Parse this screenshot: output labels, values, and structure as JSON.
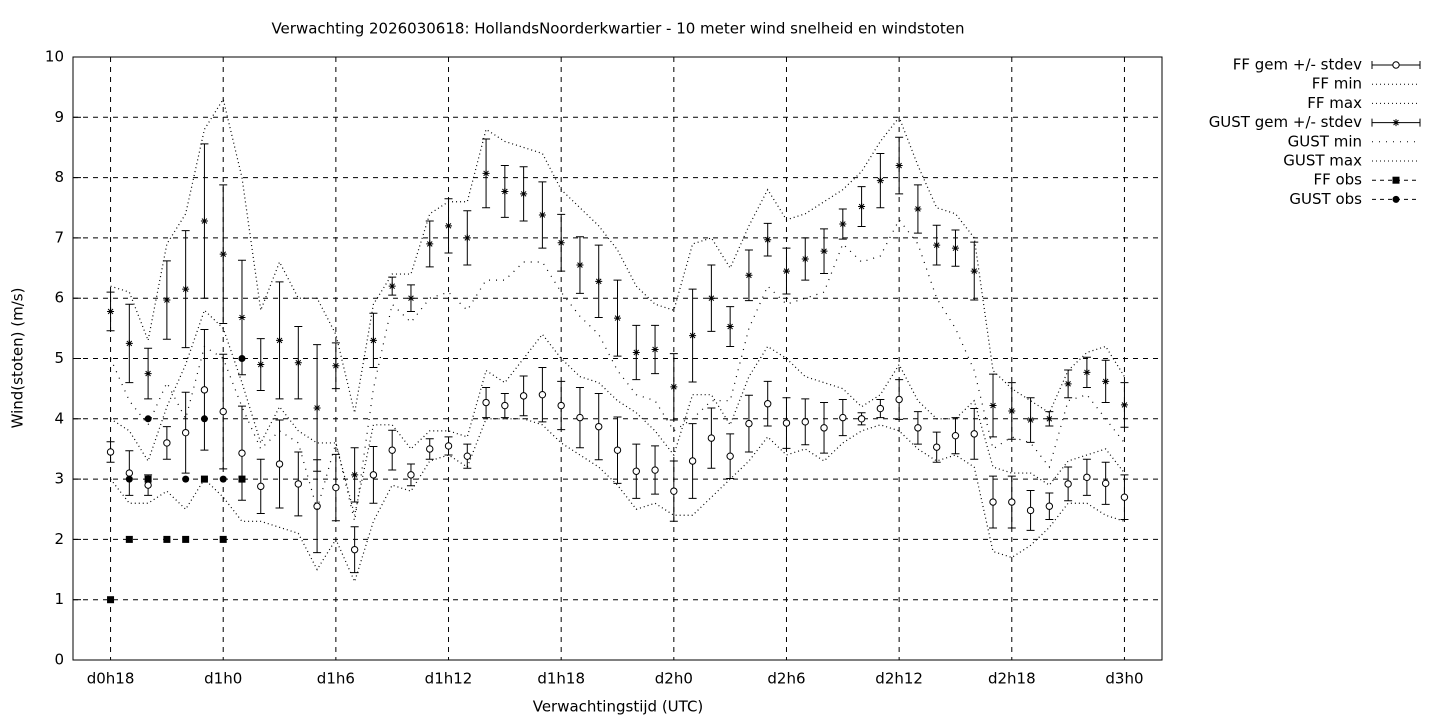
{
  "chart_data": {
    "type": "errorbar",
    "title": "Verwachting 2026030618: HollandsNoorderkwartier - 10 meter wind snelheid en windstoten",
    "x_label": "Verwachtingstijd (UTC)",
    "y_label": "Wind(stoten) (m/s)",
    "xlim": [
      16,
      74
    ],
    "xticks": [
      {
        "value": 18,
        "label": "d0h18"
      },
      {
        "value": 24,
        "label": "d1h0"
      },
      {
        "value": 30,
        "label": "d1h6"
      },
      {
        "value": 36,
        "label": "d1h12"
      },
      {
        "value": 42,
        "label": "d1h18"
      },
      {
        "value": 48,
        "label": "d2h0"
      },
      {
        "value": 54,
        "label": "d2h6"
      },
      {
        "value": 60,
        "label": "d2h12"
      },
      {
        "value": 66,
        "label": "d2h18"
      },
      {
        "value": 72,
        "label": "d3h0"
      }
    ],
    "ylim": [
      0,
      10
    ],
    "yticks": [
      0,
      1,
      2,
      3,
      4,
      5,
      6,
      7,
      8,
      9,
      10
    ],
    "grid": true,
    "legend": "outside-top-right",
    "x": [
      18,
      19,
      20,
      21,
      22,
      23,
      24,
      25,
      26,
      27,
      28,
      29,
      30,
      31,
      32,
      33,
      34,
      35,
      36,
      37,
      38,
      39,
      40,
      41,
      42,
      43,
      44,
      45,
      46,
      47,
      48,
      49,
      50,
      51,
      52,
      53,
      54,
      55,
      56,
      57,
      58,
      59,
      60,
      61,
      62,
      63,
      64,
      65,
      66,
      67,
      68,
      69,
      70,
      71,
      72
    ],
    "series": [
      {
        "name": "FF gem +/- stdev",
        "color": "#000000",
        "style": "errorbar",
        "marker": "open-circle",
        "values": [
          3.45,
          3.1,
          2.9,
          3.6,
          3.77,
          4.48,
          4.12,
          3.43,
          2.88,
          3.25,
          2.92,
          2.55,
          2.86,
          1.83,
          3.07,
          3.48,
          3.07,
          3.5,
          3.55,
          3.38,
          4.27,
          4.22,
          4.38,
          4.4,
          4.22,
          4.02,
          3.87,
          3.48,
          3.13,
          3.15,
          2.8,
          3.3,
          3.68,
          3.38,
          3.92,
          4.25,
          3.93,
          3.95,
          3.85,
          4.02,
          4.0,
          4.17,
          4.32,
          3.85,
          3.53,
          3.72,
          3.75,
          2.62,
          2.62,
          2.48,
          2.55,
          2.92,
          3.03,
          2.93,
          2.7
        ],
        "errors": [
          0.17,
          0.37,
          0.17,
          0.27,
          0.67,
          1.0,
          0.95,
          0.78,
          0.45,
          0.73,
          0.53,
          0.77,
          0.55,
          0.38,
          0.47,
          0.33,
          0.18,
          0.17,
          0.15,
          0.2,
          0.25,
          0.2,
          0.33,
          0.45,
          0.4,
          0.5,
          0.55,
          0.55,
          0.45,
          0.4,
          0.5,
          0.62,
          0.5,
          0.37,
          0.47,
          0.37,
          0.42,
          0.38,
          0.42,
          0.3,
          0.1,
          0.15,
          0.33,
          0.27,
          0.25,
          0.3,
          0.42,
          0.43,
          0.43,
          0.33,
          0.22,
          0.28,
          0.3,
          0.35,
          0.37
        ]
      },
      {
        "name": "FF min",
        "color": "#000000",
        "style": "dotted",
        "values": [
          3.0,
          2.6,
          2.6,
          2.8,
          2.5,
          3.0,
          2.7,
          2.3,
          2.3,
          2.2,
          2.1,
          1.5,
          2.0,
          1.3,
          2.3,
          2.9,
          2.8,
          3.3,
          3.4,
          3.2,
          4.0,
          4.0,
          4.0,
          3.9,
          3.6,
          3.4,
          3.2,
          2.9,
          2.5,
          2.6,
          2.4,
          2.4,
          2.7,
          3.0,
          3.3,
          3.7,
          3.4,
          3.5,
          3.3,
          3.6,
          3.8,
          3.9,
          3.8,
          3.5,
          3.3,
          3.4,
          3.2,
          1.8,
          1.7,
          1.9,
          2.2,
          2.6,
          2.6,
          2.4,
          2.3
        ]
      },
      {
        "name": "FF max",
        "color": "#000000",
        "style": "dotted",
        "values": [
          4.0,
          3.8,
          3.3,
          4.2,
          4.9,
          5.8,
          5.5,
          4.6,
          3.6,
          4.2,
          3.8,
          3.6,
          3.6,
          2.4,
          3.9,
          3.9,
          3.5,
          3.8,
          3.8,
          3.7,
          4.8,
          4.6,
          5.0,
          5.4,
          5.0,
          4.7,
          4.6,
          4.3,
          4.1,
          3.8,
          3.4,
          4.4,
          4.4,
          3.9,
          4.7,
          5.2,
          5.0,
          4.7,
          4.6,
          4.5,
          4.2,
          4.4,
          4.9,
          4.3,
          4.0,
          4.0,
          4.3,
          3.2,
          3.1,
          3.1,
          2.9,
          3.3,
          3.4,
          3.5,
          3.1
        ]
      },
      {
        "name": "GUST gem +/- stdev",
        "color": "#000000",
        "style": "errorbar",
        "marker": "star",
        "values": [
          5.78,
          5.25,
          4.75,
          5.97,
          6.15,
          7.28,
          6.73,
          5.68,
          4.9,
          5.3,
          4.93,
          4.18,
          4.88,
          3.07,
          5.3,
          6.2,
          6.0,
          6.9,
          7.2,
          7.0,
          8.07,
          7.77,
          7.73,
          7.38,
          6.92,
          6.55,
          6.28,
          5.67,
          5.1,
          5.15,
          4.53,
          5.38,
          6.0,
          5.53,
          6.38,
          6.97,
          6.45,
          6.65,
          6.78,
          7.23,
          7.52,
          7.95,
          8.2,
          7.48,
          6.88,
          6.83,
          6.45,
          4.22,
          4.13,
          3.98,
          4.0,
          4.58,
          4.77,
          4.62,
          4.23
        ],
        "errors": [
          0.32,
          0.65,
          0.42,
          0.65,
          0.97,
          1.28,
          1.15,
          0.95,
          0.43,
          0.97,
          0.6,
          1.05,
          0.38,
          0.45,
          0.45,
          0.15,
          0.22,
          0.38,
          0.45,
          0.45,
          0.57,
          0.43,
          0.45,
          0.55,
          0.47,
          0.47,
          0.6,
          0.63,
          0.45,
          0.4,
          0.55,
          0.77,
          0.55,
          0.33,
          0.42,
          0.27,
          0.38,
          0.35,
          0.37,
          0.25,
          0.33,
          0.45,
          0.47,
          0.4,
          0.33,
          0.3,
          0.48,
          0.52,
          0.47,
          0.37,
          0.12,
          0.23,
          0.25,
          0.35,
          0.37
        ]
      },
      {
        "name": "GUST min",
        "color": "#000000",
        "style": "sparse-dotted",
        "values": [
          5.0,
          4.3,
          3.9,
          4.6,
          4.0,
          5.2,
          5.0,
          4.2,
          3.5,
          3.8,
          3.6,
          2.5,
          3.6,
          2.3,
          4.5,
          5.9,
          5.6,
          6.0,
          6.1,
          5.8,
          6.3,
          6.3,
          6.6,
          6.6,
          6.1,
          5.7,
          5.4,
          4.8,
          4.4,
          4.3,
          3.8,
          4.0,
          4.3,
          4.3,
          5.5,
          6.2,
          5.9,
          6.0,
          6.1,
          6.9,
          6.6,
          6.7,
          7.3,
          6.9,
          6.0,
          5.5,
          4.8,
          3.5,
          3.7,
          3.6,
          3.2,
          4.3,
          4.4,
          4.0,
          3.6
        ]
      },
      {
        "name": "GUST max",
        "color": "#000000",
        "style": "dotted",
        "values": [
          6.2,
          6.1,
          5.3,
          6.9,
          7.4,
          8.8,
          9.3,
          8.0,
          5.8,
          6.6,
          6.0,
          6.0,
          5.4,
          4.1,
          5.9,
          6.4,
          6.4,
          7.4,
          7.6,
          7.6,
          8.8,
          8.6,
          8.5,
          8.4,
          7.8,
          7.5,
          7.2,
          6.8,
          6.2,
          5.9,
          5.8,
          6.9,
          7.0,
          6.5,
          7.2,
          7.8,
          7.3,
          7.4,
          7.6,
          7.8,
          8.1,
          8.6,
          9.0,
          8.2,
          7.5,
          7.4,
          7.0,
          4.8,
          4.5,
          4.3,
          4.1,
          4.8,
          5.1,
          5.2,
          4.7
        ]
      },
      {
        "name": "FF obs",
        "color": "#000000",
        "style": "points",
        "marker": "square",
        "x": [
          18,
          19,
          20,
          21,
          22,
          23,
          24,
          25
        ],
        "values": [
          1,
          2,
          3,
          2,
          2,
          3,
          2,
          3
        ]
      },
      {
        "name": "GUST obs",
        "color": "#000000",
        "style": "points",
        "marker": "dot",
        "x": [
          19,
          20,
          22,
          23,
          24,
          25
        ],
        "values": [
          3,
          4,
          3,
          4,
          3,
          5
        ]
      }
    ]
  }
}
